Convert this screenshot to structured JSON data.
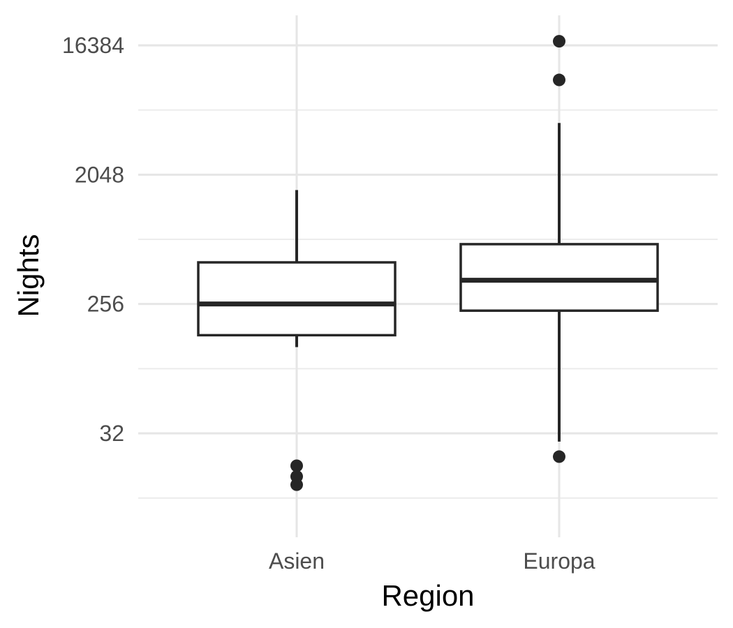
{
  "chart_data": {
    "type": "boxplot",
    "xlabel": "Region",
    "ylabel": "Nights",
    "y_scale": "log2",
    "ylim": [
      11.3,
      20000
    ],
    "y_ticks": [
      32,
      256,
      2048,
      16384
    ],
    "y_tick_labels": [
      "32",
      "256",
      "2048",
      "16384"
    ],
    "y_minor_ticks": [
      11.3,
      90.5,
      724,
      5793
    ],
    "grid": true,
    "categories": [
      "Asien",
      "Europa"
    ],
    "boxes": [
      {
        "category": "Asien",
        "whisker_low": 128,
        "q1": 155,
        "median": 256,
        "q3": 500,
        "whisker_high": 1600,
        "outliers": [
          19,
          16,
          14
        ]
      },
      {
        "category": "Europa",
        "whisker_low": 28,
        "q1": 230,
        "median": 375,
        "q3": 670,
        "whisker_high": 4700,
        "outliers": [
          17500,
          9400,
          22
        ]
      }
    ]
  }
}
